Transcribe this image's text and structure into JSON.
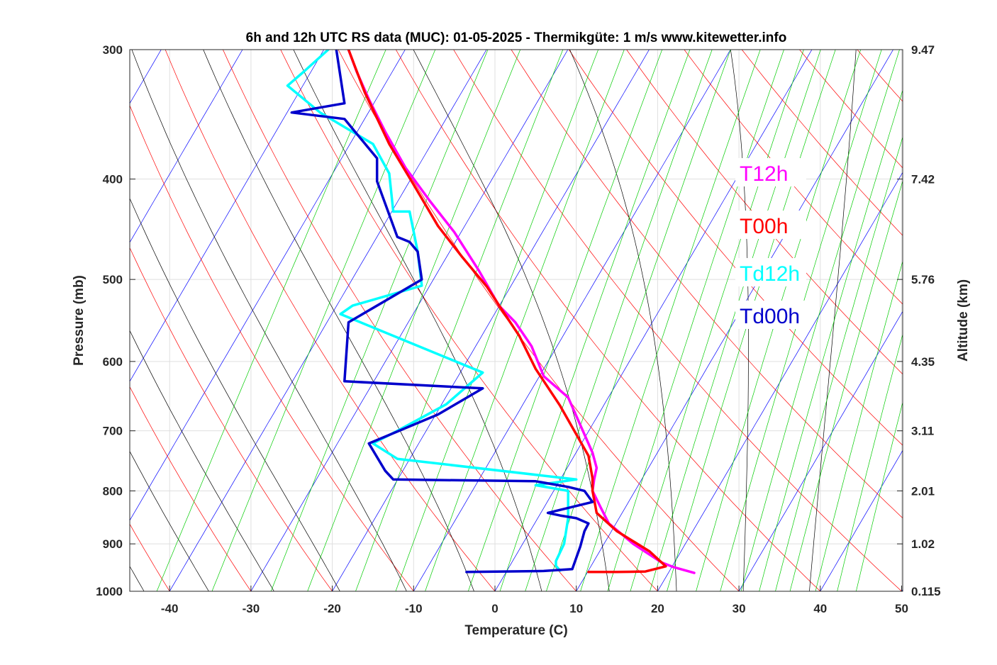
{
  "chart_data": {
    "type": "line",
    "title": "6h and 12h UTC RS data (MUC):  01-05-2025 - Thermikgüte: 1 m/s www.kitewetter.info",
    "xlabel": "Temperature (C)",
    "ylabel": "Pressure (mb)",
    "y2label": "Altitude (km)",
    "xlim": [
      -45,
      50
    ],
    "ylim": [
      1000,
      300
    ],
    "y_scale": "log",
    "grid": true,
    "x_ticks": [
      "-40",
      "-30",
      "-20",
      "-10",
      "0",
      "10",
      "20",
      "30",
      "40",
      "50"
    ],
    "y_ticks": [
      "300",
      "400",
      "500",
      "600",
      "700",
      "800",
      "900",
      "1000"
    ],
    "y2_ticks": [
      "9.47",
      "7.42",
      "5.76",
      "4.35",
      "3.11",
      "2.01",
      "1.02",
      "0.115"
    ],
    "legend_position": "right",
    "colors": {
      "T12h": "#ff00ff",
      "T00h": "#ff0000",
      "Td12h": "#00ffff",
      "Td00h": "#0000cc",
      "dry_adiabat": "#ff0000",
      "moist_adiabat": "#000000",
      "isotherm": "#0000ff",
      "mixing_ratio": "#00cc00"
    },
    "series": [
      {
        "name": "T12h",
        "points": [
          [
            24.5,
            960
          ],
          [
            22,
            948
          ],
          [
            20.5,
            938
          ],
          [
            17,
            900
          ],
          [
            14,
            860
          ],
          [
            13,
            830
          ],
          [
            12,
            800
          ],
          [
            12.2,
            780
          ],
          [
            12.5,
            760
          ],
          [
            12,
            735
          ],
          [
            9,
            650
          ],
          [
            6,
            620
          ],
          [
            4.5,
            580
          ],
          [
            2.5,
            550
          ],
          [
            0.5,
            530
          ],
          [
            -2,
            490
          ],
          [
            -5,
            450
          ],
          [
            -8,
            420
          ],
          [
            -11,
            390
          ],
          [
            -13.5,
            360
          ],
          [
            -15.5,
            335
          ],
          [
            -17,
            315
          ],
          [
            -18,
            300
          ]
        ]
      },
      {
        "name": "T00h",
        "points": [
          [
            11.5,
            958
          ],
          [
            15,
            958
          ],
          [
            18.5,
            957
          ],
          [
            21,
            946
          ],
          [
            19,
            915
          ],
          [
            15,
            875
          ],
          [
            12.5,
            840
          ],
          [
            12,
            800
          ],
          [
            12,
            778
          ],
          [
            11.5,
            740
          ],
          [
            8,
            662
          ],
          [
            5,
            610
          ],
          [
            3,
            567
          ],
          [
            1,
            537
          ],
          [
            -1,
            508
          ],
          [
            -4,
            476
          ],
          [
            -7,
            444
          ],
          [
            -10,
            405
          ],
          [
            -13,
            370
          ],
          [
            -16,
            330
          ],
          [
            -18,
            300
          ]
        ]
      },
      {
        "name": "Td12h",
        "points": [
          [
            8,
            955
          ],
          [
            7.5,
            945
          ],
          [
            7.5,
            935
          ],
          [
            8.5,
            900
          ],
          [
            9,
            850
          ],
          [
            9,
            800
          ],
          [
            5,
            790
          ],
          [
            10,
            780
          ],
          [
            -12,
            745
          ],
          [
            -15,
            720
          ],
          [
            -12,
            700
          ],
          [
            -6,
            660
          ],
          [
            -1.5,
            615
          ],
          [
            -19,
            540
          ],
          [
            -17.5,
            530
          ],
          [
            -9,
            507
          ],
          [
            -9.5,
            470
          ],
          [
            -10.5,
            430
          ],
          [
            -12.5,
            430
          ],
          [
            -13,
            395
          ],
          [
            -15,
            370
          ],
          [
            -21.5,
            345
          ],
          [
            -25.5,
            325
          ],
          [
            -23.5,
            315
          ],
          [
            -20.5,
            300
          ]
        ]
      },
      {
        "name": "Td00h",
        "points": [
          [
            -3.5,
            958
          ],
          [
            6,
            956
          ],
          [
            9.5,
            952
          ],
          [
            10.5,
            905
          ],
          [
            11,
            875
          ],
          [
            11.5,
            860
          ],
          [
            10,
            850
          ],
          [
            8,
            845
          ],
          [
            6.5,
            840
          ],
          [
            12,
            820
          ],
          [
            11,
            800
          ],
          [
            9,
            793
          ],
          [
            5,
            783
          ],
          [
            -12.5,
            780
          ],
          [
            -13.5,
            765
          ],
          [
            -15.5,
            720
          ],
          [
            -7,
            675
          ],
          [
            -1.5,
            637
          ],
          [
            -18.5,
            627
          ],
          [
            -18,
            550
          ],
          [
            -9,
            500
          ],
          [
            -9.5,
            470
          ],
          [
            -10.5,
            460
          ],
          [
            -12,
            455
          ],
          [
            -14.5,
            402
          ],
          [
            -14.5,
            382
          ],
          [
            -18.5,
            350
          ],
          [
            -25,
            345
          ],
          [
            -18.5,
            338
          ],
          [
            -19.5,
            300
          ]
        ]
      }
    ]
  }
}
